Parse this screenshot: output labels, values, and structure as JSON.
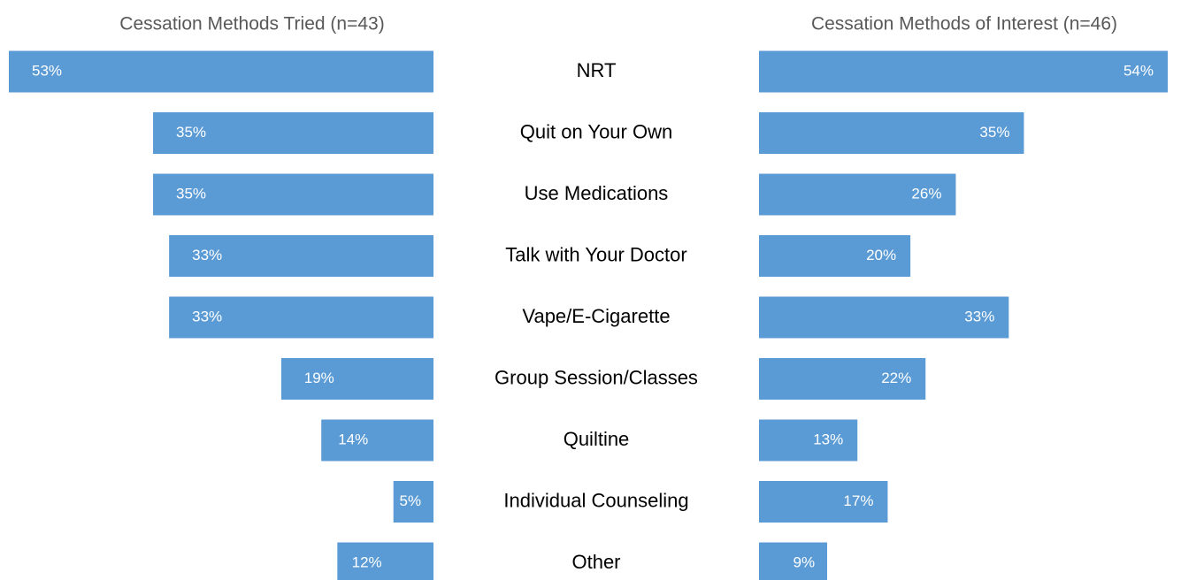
{
  "chart_data": {
    "type": "butterfly-bar",
    "categories": [
      "NRT",
      "Quit on Your Own",
      "Use Medications",
      "Talk with Your Doctor",
      "Vape/E-Cigarette",
      "Group Session/Classes",
      "Quiltine",
      "Individual Counseling",
      "Other"
    ],
    "series": [
      {
        "name": "Cessation Methods Tried (n=43)",
        "color": "#5b9bd5",
        "values": [
          53,
          35,
          35,
          33,
          33,
          19,
          14,
          5,
          12
        ],
        "value_labels": [
          "53%",
          "35%",
          "35%",
          "33%",
          "33%",
          "19%",
          "14%",
          "5%",
          "12%"
        ]
      },
      {
        "name": "Cessation Methods of Interest (n=46)",
        "color": "#5b9bd5",
        "values": [
          54,
          35,
          26,
          20,
          33,
          22,
          13,
          17,
          9
        ],
        "value_labels": [
          "54%",
          "35%",
          "26%",
          "20%",
          "33%",
          "22%",
          "13%",
          "17%",
          "9%"
        ]
      }
    ]
  }
}
